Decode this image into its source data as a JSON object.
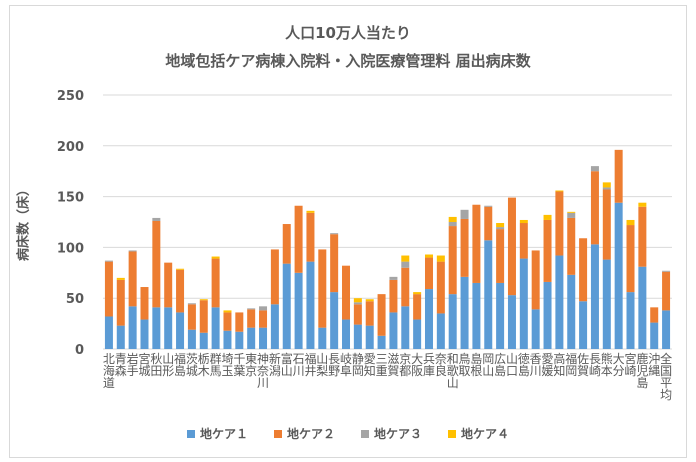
{
  "chart_data": {
    "type": "bar",
    "stacked": true,
    "title": "人口10万人当たり",
    "subtitle": "地域包括ケア病棟入院料・入院医療管理料 届出病床数",
    "xlabel": "",
    "ylabel": "病床数（床）",
    "ylim": [
      0,
      250
    ],
    "yticks": [
      0,
      50,
      100,
      150,
      200,
      250
    ],
    "grid": true,
    "legend_position": "bottom",
    "categories": [
      "北海道",
      "青森",
      "岩手",
      "宮城",
      "秋田",
      "山形",
      "福島",
      "茨城",
      "栃木",
      "群馬",
      "埼玉",
      "千葉",
      "東京",
      "神奈川",
      "新潟",
      "富山",
      "石川",
      "福井",
      "山梨",
      "長野",
      "岐阜",
      "静岡",
      "愛知",
      "三重",
      "滋賀",
      "京都",
      "大阪",
      "兵庫",
      "奈良",
      "和歌山",
      "鳥取",
      "島根",
      "岡山",
      "広島",
      "山口",
      "徳島",
      "香川",
      "愛媛",
      "高知",
      "福岡",
      "佐賀",
      "長崎",
      "熊本",
      "大分",
      "宮崎",
      "鹿児島",
      "沖縄",
      "全国平均"
    ],
    "series": [
      {
        "name": "地ケア１",
        "color": "#5b9bd5",
        "values": [
          32,
          23,
          42,
          29,
          41,
          41,
          36,
          19,
          16,
          41,
          18,
          17,
          21,
          21,
          44,
          84,
          75,
          86,
          21,
          56,
          29,
          24,
          23,
          13,
          36,
          42,
          29,
          59,
          35,
          54,
          71,
          65,
          107,
          65,
          53,
          89,
          39,
          66,
          92,
          73,
          47,
          103,
          88,
          144,
          56,
          81,
          26,
          38
        ]
      },
      {
        "name": "地ケア２",
        "color": "#ed7d31",
        "values": [
          54,
          45,
          54,
          32,
          85,
          44,
          42,
          25,
          32,
          48,
          18,
          19,
          18,
          17,
          54,
          39,
          66,
          48,
          77,
          57,
          53,
          20,
          24,
          41,
          32,
          38,
          25,
          31,
          51,
          67,
          57,
          77,
          33,
          53,
          96,
          35,
          58,
          61,
          63,
          56,
          62,
          72,
          69,
          52,
          66,
          59,
          15,
          38
        ]
      },
      {
        "name": "地ケア３",
        "color": "#a5a5a5",
        "values": [
          1,
          0,
          1,
          0,
          3,
          0,
          0,
          1,
          0,
          0,
          0,
          0,
          1,
          4,
          0,
          0,
          0,
          0,
          0,
          1,
          0,
          2,
          0,
          0,
          3,
          6,
          0,
          0,
          0,
          4,
          9,
          0,
          1,
          2,
          0,
          0,
          0,
          0,
          0,
          5,
          0,
          5,
          2,
          0,
          0,
          0,
          0,
          1
        ]
      },
      {
        "name": "地ケア４",
        "color": "#ffc000",
        "values": [
          0,
          2,
          0,
          0,
          0,
          0,
          1,
          0,
          1,
          2,
          2,
          0,
          0,
          0,
          0,
          0,
          0,
          2,
          0,
          0,
          0,
          4,
          2,
          0,
          0,
          6,
          2,
          3,
          6,
          5,
          0,
          0,
          0,
          4,
          0,
          3,
          0,
          5,
          1,
          1,
          0,
          0,
          5,
          0,
          5,
          4,
          0,
          0
        ]
      }
    ]
  }
}
